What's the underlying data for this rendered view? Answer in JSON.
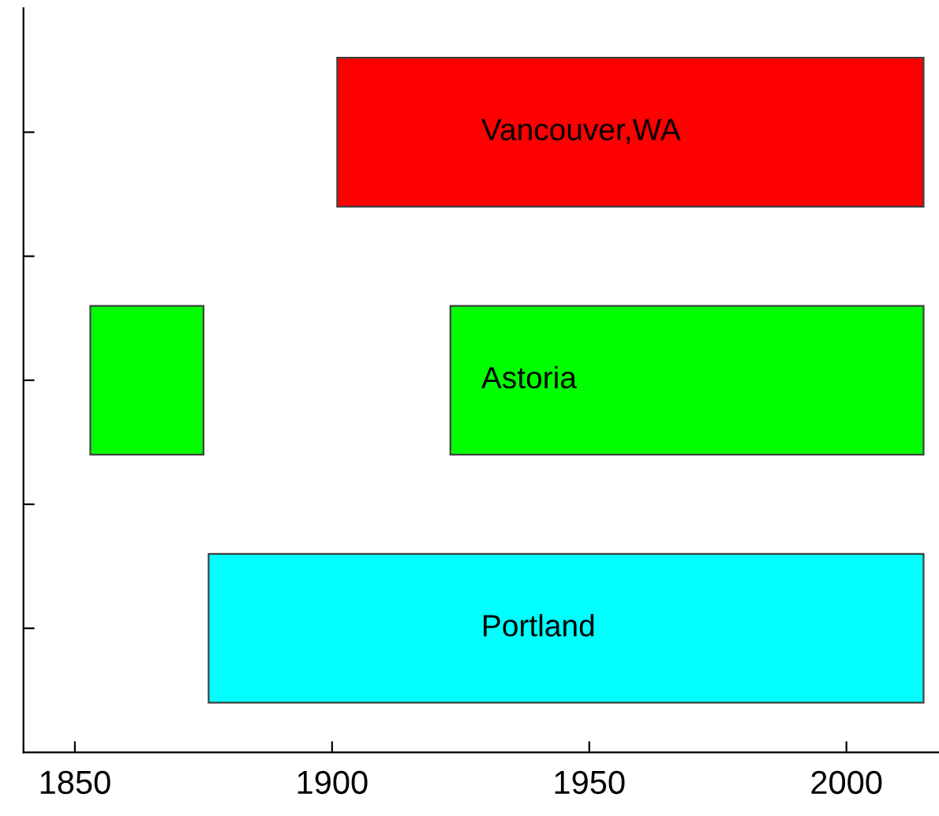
{
  "chart_data": {
    "type": "bar",
    "orientation": "horizontal",
    "categories": [
      "Vancouver,WA",
      "Astoria",
      "Portland"
    ],
    "series": [
      {
        "colors": [
          "#ff0000",
          "#00ff00",
          "#00ffff"
        ],
        "values": [
          114,
          22,
          139
        ],
        "base": [
          1901,
          1853,
          1876
        ]
      },
      {
        "colors": [
          null,
          "#00ff00",
          null
        ],
        "values": [
          null,
          92,
          null
        ],
        "base": [
          null,
          1923,
          null
        ]
      }
    ],
    "xlim": [
      1840,
      2018
    ],
    "xticks": [
      1850,
      1900,
      1950,
      2000
    ],
    "tick_labels": "x",
    "grid": false
  }
}
